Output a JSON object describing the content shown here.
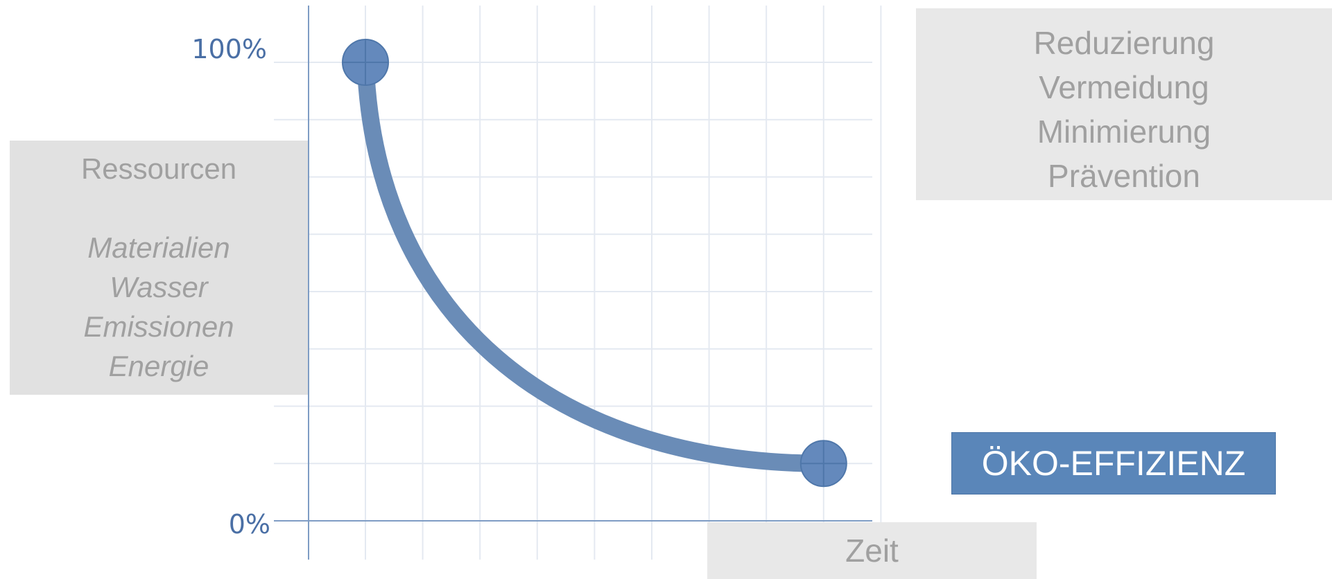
{
  "chart_data": {
    "type": "line",
    "title": "",
    "xlabel": "Zeit",
    "ylabel": "",
    "ylim": [
      0,
      100
    ],
    "y_tick_labels": [
      "100%",
      "0%"
    ],
    "grid": true,
    "series": [
      {
        "x": [
          0,
          8
        ],
        "y": [
          100,
          12.5
        ],
        "shape": "decay-curve",
        "color": "#6a8cb7",
        "endpoint_markers": true
      }
    ]
  },
  "colors": {
    "curve": "#6a8cb7",
    "marker": "#6489bc",
    "axis": "#7e9cc4",
    "grid": "#e4e9f1",
    "tick_label": "#4a6fa5",
    "badge": "#5a86b9"
  },
  "resources_box": {
    "title": "Ressourcen",
    "items": [
      "Materialien",
      "Wasser",
      "Emissionen",
      "Energie"
    ]
  },
  "strategies_box": {
    "items": [
      "Reduzierung",
      "Vermeidung",
      "Minimierung",
      "Prävention"
    ]
  },
  "badge": {
    "label": "ÖKO-EFFIZIENZ"
  }
}
